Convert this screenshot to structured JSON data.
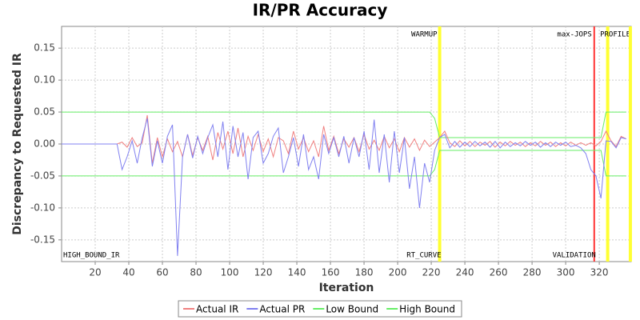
{
  "chart_data": {
    "type": "line",
    "title": "IR/PR Accuracy",
    "x_label": "Iteration",
    "y_label": "Discrepancy to Requested IR",
    "x": [
      0,
      3,
      6,
      9,
      12,
      15,
      18,
      21,
      24,
      27,
      30,
      33,
      36,
      39,
      42,
      45,
      48,
      51,
      54,
      57,
      60,
      63,
      66,
      69,
      72,
      75,
      78,
      81,
      84,
      87,
      90,
      93,
      96,
      99,
      102,
      105,
      108,
      111,
      114,
      117,
      120,
      123,
      126,
      129,
      132,
      135,
      138,
      141,
      144,
      147,
      150,
      153,
      156,
      159,
      162,
      165,
      168,
      171,
      174,
      177,
      180,
      183,
      186,
      189,
      192,
      195,
      198,
      201,
      204,
      207,
      210,
      213,
      216,
      219,
      222,
      225,
      228,
      231,
      234,
      237,
      240,
      243,
      246,
      249,
      252,
      255,
      258,
      261,
      264,
      267,
      270,
      273,
      276,
      279,
      282,
      285,
      288,
      291,
      294,
      297,
      300,
      303,
      306,
      309,
      312,
      315,
      318,
      321,
      324,
      327,
      330,
      333,
      336
    ],
    "series": [
      {
        "name": "Actual IR",
        "color": "#f08080",
        "values": [
          0,
          0,
          0,
          0,
          0,
          0,
          0,
          0,
          0,
          0,
          0,
          0,
          0.003,
          -0.005,
          0.01,
          -0.004,
          0.002,
          0.045,
          -0.03,
          0.01,
          -0.02,
          0.008,
          -0.012,
          0.004,
          -0.02,
          0.015,
          -0.018,
          0.01,
          -0.01,
          0.012,
          -0.025,
          0.018,
          -0.008,
          0.02,
          -0.015,
          0.025,
          -0.02,
          0.012,
          -0.01,
          0.015,
          -0.012,
          0.008,
          -0.02,
          0.01,
          0.005,
          -0.015,
          0.02,
          -0.008,
          0.01,
          -0.012,
          0.005,
          -0.02,
          0.028,
          -0.01,
          0.012,
          -0.015,
          0.008,
          -0.005,
          0.01,
          -0.012,
          0.015,
          -0.008,
          0.006,
          -0.01,
          0.012,
          -0.006,
          0.008,
          -0.012,
          0.01,
          -0.005,
          0.008,
          -0.01,
          0.006,
          -0.004,
          0.003,
          0.01,
          0.02,
          0.002,
          -0.004,
          0.005,
          -0.003,
          0.004,
          -0.004,
          0.003,
          -0.002,
          0.004,
          -0.005,
          0.003,
          -0.003,
          0.004,
          -0.002,
          0.003,
          -0.004,
          0.002,
          -0.003,
          0.004,
          -0.002,
          0.003,
          -0.004,
          0.002,
          -0.003,
          0.003,
          -0.002,
          0.002,
          -0.002,
          0.002,
          -0.003,
          0.004,
          0.02,
          0.005,
          -0.004,
          0.012,
          0.008
        ]
      },
      {
        "name": "Actual PR",
        "color": "#8080f0",
        "values": [
          0,
          0,
          0,
          0,
          0,
          0,
          0,
          0,
          0,
          0,
          0,
          0,
          -0.04,
          -0.02,
          0.005,
          -0.03,
          0.01,
          0.04,
          -0.035,
          0.005,
          -0.03,
          0.012,
          0.03,
          -0.175,
          -0.02,
          0.015,
          -0.022,
          0.012,
          -0.015,
          0.01,
          0.03,
          -0.02,
          0.035,
          -0.04,
          0.028,
          -0.02,
          0.018,
          -0.055,
          0.01,
          0.02,
          -0.03,
          -0.015,
          0.012,
          0.025,
          -0.045,
          -0.02,
          0.01,
          -0.035,
          0.015,
          -0.04,
          -0.02,
          -0.055,
          0.015,
          -0.015,
          0.01,
          -0.02,
          0.012,
          -0.03,
          0.01,
          -0.02,
          0.02,
          -0.04,
          0.038,
          -0.045,
          0.015,
          -0.06,
          0.02,
          -0.045,
          0.01,
          -0.07,
          -0.02,
          -0.1,
          -0.03,
          -0.06,
          -0.01,
          0.01,
          0.015,
          -0.006,
          0.004,
          -0.005,
          0.003,
          -0.004,
          0.004,
          -0.003,
          0.003,
          -0.005,
          0.004,
          -0.006,
          0.003,
          -0.004,
          0.002,
          -0.003,
          0.004,
          -0.002,
          0.003,
          -0.005,
          0.002,
          -0.004,
          0.003,
          -0.002,
          0.003,
          -0.004,
          -0.002,
          -0.006,
          -0.015,
          -0.04,
          -0.05,
          -0.085,
          0.005,
          0.004,
          -0.006,
          0.01,
          0.008
        ]
      },
      {
        "name": "Low Bound",
        "color": "#66ee66",
        "values": [
          -0.05,
          -0.05,
          -0.05,
          -0.05,
          -0.05,
          -0.05,
          -0.05,
          -0.05,
          -0.05,
          -0.05,
          -0.05,
          -0.05,
          -0.05,
          -0.05,
          -0.05,
          -0.05,
          -0.05,
          -0.05,
          -0.05,
          -0.05,
          -0.05,
          -0.05,
          -0.05,
          -0.05,
          -0.05,
          -0.05,
          -0.05,
          -0.05,
          -0.05,
          -0.05,
          -0.05,
          -0.05,
          -0.05,
          -0.05,
          -0.05,
          -0.05,
          -0.05,
          -0.05,
          -0.05,
          -0.05,
          -0.05,
          -0.05,
          -0.05,
          -0.05,
          -0.05,
          -0.05,
          -0.05,
          -0.05,
          -0.05,
          -0.05,
          -0.05,
          -0.05,
          -0.05,
          -0.05,
          -0.05,
          -0.05,
          -0.05,
          -0.05,
          -0.05,
          -0.05,
          -0.05,
          -0.05,
          -0.05,
          -0.05,
          -0.05,
          -0.05,
          -0.05,
          -0.05,
          -0.05,
          -0.05,
          -0.05,
          -0.05,
          -0.05,
          -0.05,
          -0.04,
          -0.01,
          -0.01,
          -0.01,
          -0.01,
          -0.01,
          -0.01,
          -0.01,
          -0.01,
          -0.01,
          -0.01,
          -0.01,
          -0.01,
          -0.01,
          -0.01,
          -0.01,
          -0.01,
          -0.01,
          -0.01,
          -0.01,
          -0.01,
          -0.01,
          -0.01,
          -0.01,
          -0.01,
          -0.01,
          -0.01,
          -0.01,
          -0.01,
          -0.01,
          -0.01,
          -0.01,
          -0.01,
          -0.01,
          -0.05,
          -0.05,
          -0.05,
          -0.05,
          -0.05
        ]
      },
      {
        "name": "High Bound",
        "color": "#66ee66",
        "values": [
          0.05,
          0.05,
          0.05,
          0.05,
          0.05,
          0.05,
          0.05,
          0.05,
          0.05,
          0.05,
          0.05,
          0.05,
          0.05,
          0.05,
          0.05,
          0.05,
          0.05,
          0.05,
          0.05,
          0.05,
          0.05,
          0.05,
          0.05,
          0.05,
          0.05,
          0.05,
          0.05,
          0.05,
          0.05,
          0.05,
          0.05,
          0.05,
          0.05,
          0.05,
          0.05,
          0.05,
          0.05,
          0.05,
          0.05,
          0.05,
          0.05,
          0.05,
          0.05,
          0.05,
          0.05,
          0.05,
          0.05,
          0.05,
          0.05,
          0.05,
          0.05,
          0.05,
          0.05,
          0.05,
          0.05,
          0.05,
          0.05,
          0.05,
          0.05,
          0.05,
          0.05,
          0.05,
          0.05,
          0.05,
          0.05,
          0.05,
          0.05,
          0.05,
          0.05,
          0.05,
          0.05,
          0.05,
          0.05,
          0.05,
          0.04,
          0.01,
          0.01,
          0.01,
          0.01,
          0.01,
          0.01,
          0.01,
          0.01,
          0.01,
          0.01,
          0.01,
          0.01,
          0.01,
          0.01,
          0.01,
          0.01,
          0.01,
          0.01,
          0.01,
          0.01,
          0.01,
          0.01,
          0.01,
          0.01,
          0.01,
          0.01,
          0.01,
          0.01,
          0.01,
          0.01,
          0.01,
          0.01,
          0.01,
          0.05,
          0.05,
          0.05,
          0.05,
          0.05
        ]
      }
    ],
    "markers": [
      {
        "x": 0,
        "bottom_label": "HIGH_BOUND_IR"
      },
      {
        "x": 225,
        "color": "#ffff33",
        "top_label": "WARMUP",
        "bottom_label": "RT_CURVE"
      },
      {
        "x": 317,
        "color": "#ff3333",
        "top_label": "max-JOPS",
        "bottom_label": "VALIDATION"
      },
      {
        "x": 325,
        "color": "#ffff33",
        "top_label": "PROFILE"
      },
      {
        "x": 338.5,
        "color": "#ffff33"
      }
    ],
    "xlim": [
      0,
      339
    ],
    "ylim": [
      -0.184,
      0.184
    ],
    "xticks": [
      20,
      40,
      60,
      80,
      100,
      120,
      140,
      160,
      180,
      200,
      220,
      240,
      260,
      280,
      300,
      320
    ],
    "yticks": [
      {
        "value": -0.15,
        "label": "-0.15"
      },
      {
        "value": -0.1,
        "label": "-0.10"
      },
      {
        "value": -0.05,
        "label": "-0.05"
      },
      {
        "value": 0,
        "label": "0.00"
      },
      {
        "value": 0.05,
        "label": "0.05"
      },
      {
        "value": 0.1,
        "label": "0.10"
      },
      {
        "value": 0.15,
        "label": "0.15"
      }
    ],
    "grid": true,
    "legend": "bottom"
  }
}
